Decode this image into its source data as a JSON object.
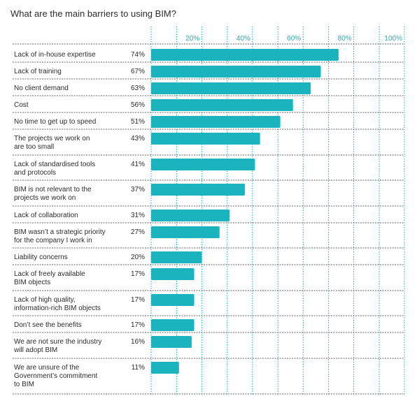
{
  "chart_data": {
    "type": "bar",
    "orientation": "horizontal",
    "title": "What are the main barriers to using BIM?",
    "xlabel": "",
    "ylabel": "",
    "xlim": [
      0,
      100
    ],
    "x_ticks": [
      20,
      40,
      60,
      80,
      100
    ],
    "x_tick_labels": [
      "20%",
      "40%",
      "60%",
      "80%",
      "100%"
    ],
    "categories": [
      [
        "Lack of in-house expertise"
      ],
      [
        "Lack of training"
      ],
      [
        "No client demand"
      ],
      [
        "Cost"
      ],
      [
        "No time to get up to speed"
      ],
      [
        "The projects we work on",
        "are too small"
      ],
      [
        "Lack of standardised tools",
        "and protocols"
      ],
      [
        "BIM is not relevant to the",
        "projects we work on"
      ],
      [
        "Lack of collaboration"
      ],
      [
        "BIM wasn’t a strategic priority",
        "for the company I work in"
      ],
      [
        "Liability concerns"
      ],
      [
        "Lack of freely available",
        "BIM objects"
      ],
      [
        "Lack of high quality,",
        "information-rich BIM objects"
      ],
      [
        "Don’t see the benefits"
      ],
      [
        "We are not sure the industry",
        "will adopt BIM"
      ],
      [
        "We are unsure of the",
        "Government’s commitment",
        "to BIM"
      ]
    ],
    "values": [
      74,
      67,
      63,
      56,
      51,
      43,
      41,
      37,
      31,
      27,
      20,
      17,
      17,
      17,
      16,
      11
    ],
    "value_labels": [
      "74%",
      "67%",
      "63%",
      "56%",
      "51%",
      "43%",
      "41%",
      "37%",
      "31%",
      "27%",
      "20%",
      "17%",
      "17%",
      "17%",
      "16%",
      "11%"
    ],
    "grid": true,
    "legend": "none",
    "colors": {
      "bar": "#1bb4be",
      "grid": "#2aa9b8",
      "tick_label": "#3aa7b3",
      "separator": "#333333",
      "text": "#2b2b2b"
    }
  }
}
